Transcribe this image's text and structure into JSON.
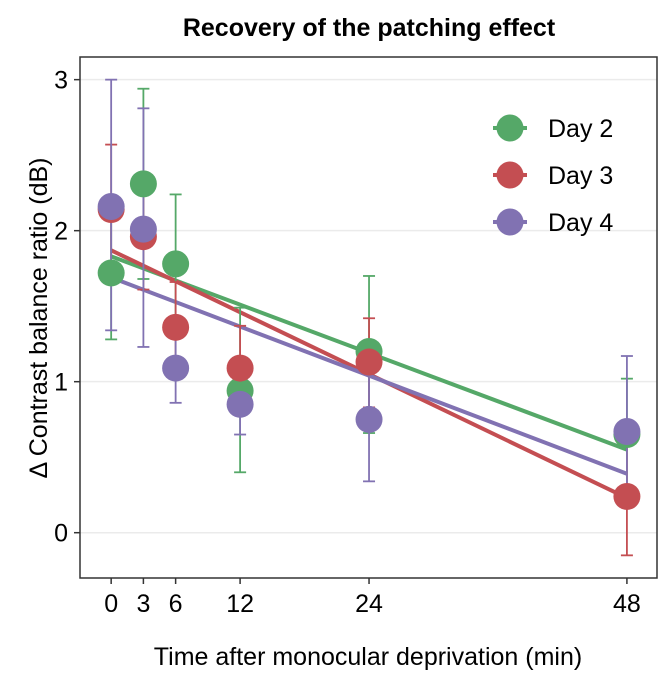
{
  "chart_data": {
    "type": "scatter",
    "title": "Recovery of the patching effect",
    "xlabel": "Time after monocular deprivation (min)",
    "ylabel": "Δ Contrast balance ratio (dB)",
    "xlim": [
      -2.9,
      50.8
    ],
    "ylim": [
      -0.3,
      3.15
    ],
    "xticks": [
      0,
      3,
      6,
      12,
      24,
      48
    ],
    "yticks": [
      0,
      1,
      2,
      3
    ],
    "grid": "horizontal",
    "legend_position": "top-right",
    "series": [
      {
        "name": "Day 2",
        "color": "#55a868",
        "x": [
          0,
          3,
          6,
          12,
          24,
          48
        ],
        "y": [
          1.72,
          2.31,
          1.78,
          0.94,
          1.2,
          0.65
        ],
        "err_low": [
          1.28,
          1.68,
          1.32,
          0.4,
          0.66,
          0.3
        ],
        "err_high": [
          2.17,
          2.94,
          2.24,
          1.49,
          1.7,
          1.02
        ],
        "fit": [
          [
            0,
            1.83
          ],
          [
            48,
            0.55
          ]
        ]
      },
      {
        "name": "Day 3",
        "color": "#c44e52",
        "x": [
          0,
          3,
          6,
          12,
          24,
          48
        ],
        "y": [
          2.14,
          1.96,
          1.36,
          1.09,
          1.13,
          0.24
        ],
        "err_low": [
          1.74,
          1.61,
          1.06,
          0.81,
          0.83,
          -0.15
        ],
        "err_high": [
          2.57,
          2.33,
          1.66,
          1.37,
          1.42,
          0.63
        ],
        "fit": [
          [
            0,
            1.87
          ],
          [
            48,
            0.23
          ]
        ]
      },
      {
        "name": "Day 4",
        "color": "#8172b2",
        "x": [
          0,
          3,
          6,
          12,
          24,
          48
        ],
        "y": [
          2.16,
          2.01,
          1.09,
          0.85,
          0.75,
          0.67
        ],
        "err_low": [
          1.34,
          1.23,
          0.86,
          0.65,
          0.34,
          0.17
        ],
        "err_high": [
          3.0,
          2.81,
          1.32,
          1.07,
          1.17,
          1.17
        ],
        "fit": [
          [
            0,
            1.69
          ],
          [
            48,
            0.39
          ]
        ]
      }
    ]
  }
}
